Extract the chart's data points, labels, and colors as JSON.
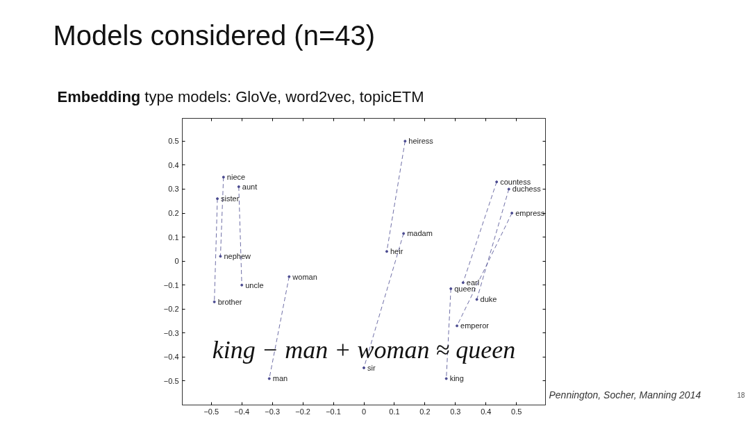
{
  "chart_data": {
    "type": "line",
    "title": "Models considered (n=43)",
    "subtitle": "Embedding type models: GloVe, word2vec, topicETM",
    "annotations": [
      "king − man + woman ≈ queen",
      "Pennington, Socher, Manning 2014",
      "18"
    ],
    "xlim": [
      -0.595,
      0.595
    ],
    "ylim": [
      -0.6,
      0.595
    ],
    "xticks": [
      {
        "value": -0.5,
        "label": "−0.5"
      },
      {
        "value": -0.4,
        "label": "−0.4"
      },
      {
        "value": -0.3,
        "label": "−0.3"
      },
      {
        "value": -0.2,
        "label": "−0.2"
      },
      {
        "value": -0.1,
        "label": "−0.1"
      },
      0,
      0.1,
      0.2,
      0.3,
      0.4,
      0.5
    ],
    "yticks": [
      {
        "value": -0.5,
        "label": "−0.5"
      },
      {
        "value": -0.4,
        "label": "−0.4"
      },
      {
        "value": -0.3,
        "label": "−0.3"
      },
      {
        "value": -0.2,
        "label": "−0.2"
      },
      {
        "value": -0.1,
        "label": "−0.1"
      },
      0,
      0.1,
      0.2,
      0.3,
      0.4,
      0.5
    ],
    "grid": false,
    "line_style": "dashed",
    "marker": "circle",
    "series": [
      {
        "color": "#4a4a90",
        "x": [
          -0.46,
          -0.47
        ],
        "values": [
          0.35,
          0.02
        ],
        "value_labels": [
          "niece",
          "nephew"
        ]
      },
      {
        "color": "#4a4a90",
        "x": [
          -0.41,
          -0.4
        ],
        "values": [
          0.31,
          -0.1
        ],
        "value_labels": [
          "aunt",
          "uncle"
        ]
      },
      {
        "color": "#4a4a90",
        "x": [
          -0.48,
          -0.49
        ],
        "values": [
          0.26,
          -0.17
        ],
        "value_labels": [
          "sister",
          "brother"
        ]
      },
      {
        "color": "#4a4a90",
        "x": [
          -0.245,
          -0.31
        ],
        "values": [
          -0.065,
          -0.49
        ],
        "value_labels": [
          "woman",
          "man"
        ]
      },
      {
        "color": "#4a4a90",
        "x": [
          0.135,
          0.075
        ],
        "values": [
          0.5,
          0.04
        ],
        "value_labels": [
          "heiress",
          "heir"
        ]
      },
      {
        "color": "#4a4a90",
        "x": [
          0.13,
          0.0
        ],
        "values": [
          0.115,
          -0.445
        ],
        "value_labels": [
          "madam",
          "sir"
        ]
      },
      {
        "color": "#4a4a90",
        "x": [
          0.435,
          0.325
        ],
        "values": [
          0.33,
          -0.09
        ],
        "value_labels": [
          "countess",
          "earl"
        ]
      },
      {
        "color": "#4a4a90",
        "x": [
          0.475,
          0.37
        ],
        "values": [
          0.3,
          -0.16
        ],
        "value_labels": [
          "duchess",
          "duke"
        ]
      },
      {
        "color": "#4a4a90",
        "x": [
          0.485,
          0.305
        ],
        "values": [
          0.2,
          -0.27
        ],
        "value_labels": [
          "empress",
          "emperor"
        ]
      },
      {
        "color": "#4a4a90",
        "x": [
          0.285,
          0.27
        ],
        "values": [
          -0.115,
          -0.49
        ],
        "value_labels": [
          "queen",
          "king"
        ]
      }
    ]
  }
}
